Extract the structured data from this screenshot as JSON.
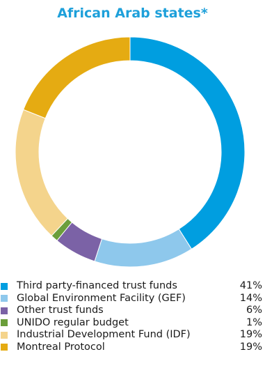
{
  "chart_data": {
    "type": "pie",
    "title": "African Arab states*",
    "categories": [
      "Third party-financed trust funds",
      "Global Environment Facility (GEF)",
      "Other trust funds",
      "UNIDO regular budget",
      "Industrial Development Fund (IDF)",
      "Montreal Protocol"
    ],
    "values": [
      41,
      14,
      6,
      1,
      19,
      19
    ],
    "value_labels": [
      "41%",
      "14%",
      "6%",
      "1%",
      "19%",
      "19%"
    ],
    "colors": [
      "#009ee0",
      "#8ec8ec",
      "#7b62a6",
      "#6b9e3b",
      "#f4d48c",
      "#e5ab12"
    ],
    "legend_placement": "bottom",
    "donut": true
  }
}
